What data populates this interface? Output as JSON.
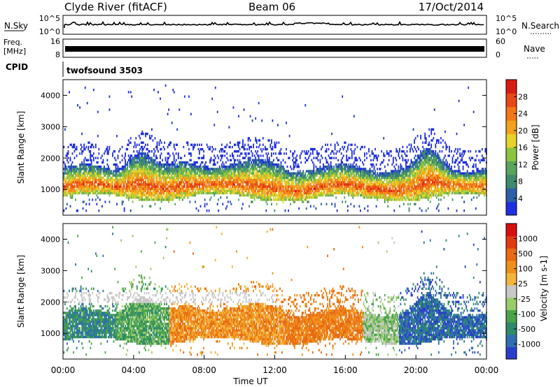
{
  "header": {
    "title": "Clyde River (fitACF)",
    "beam": "Beam 06",
    "date": "17/Oct/2014"
  },
  "nsky_panel": {
    "left_label": "N.Sky",
    "right_label": "N.Search",
    "left_ticks": [
      "10^5",
      "10^0"
    ],
    "right_ticks": [
      "10^5",
      "10^0"
    ]
  },
  "freq_panel": {
    "left_label_line1": "Freq.",
    "left_label_line2": "[MHz]",
    "right_label": "Nave",
    "left_ticks": [
      "16",
      "8"
    ],
    "right_ticks": [
      "60",
      "0"
    ]
  },
  "cpid_panel": {
    "label": "CPID",
    "program": "twofsound 3503"
  },
  "chart_data": [
    {
      "type": "heatmap",
      "name": "power",
      "ylabel": "Slant Range [km]",
      "yticks": [
        1000,
        2000,
        3000,
        4000
      ],
      "ylim": [
        180,
        4500
      ],
      "xlim": [
        0,
        24
      ],
      "colorbar": {
        "label": "Power [dB]",
        "ticks": [
          "28",
          "24",
          "20",
          "16",
          "12",
          "8",
          "4"
        ],
        "colors": [
          "#1f2fe0",
          "#2c5fa6",
          "#3d8a6c",
          "#5aa55c",
          "#8cc440",
          "#e6d22a",
          "#f2a21e",
          "#f0781a",
          "#e84816",
          "#d91c10"
        ]
      }
    },
    {
      "type": "heatmap",
      "name": "velocity",
      "ylabel": "Slant Range [km]",
      "yticks": [
        1000,
        2000,
        3000,
        4000
      ],
      "ylim": [
        180,
        4500
      ],
      "xlim": [
        0,
        24
      ],
      "xlabel": "Time UT",
      "xticks": [
        "00:00",
        "04:00",
        "08:00",
        "12:00",
        "16:00",
        "20:00",
        "00:00"
      ],
      "colorbar": {
        "label": "Velocity [m s-1]",
        "ticks": [
          "1000",
          "500",
          "100",
          "25",
          "-25",
          "-100",
          "-500",
          "-1000"
        ],
        "colors": [
          "#2a3fc9",
          "#2f6fb2",
          "#2f8a6a",
          "#4aa54a",
          "#9acb6b",
          "#c8c8c8",
          "#f2b43a",
          "#f0901c",
          "#e86a12",
          "#e23a10",
          "#d80f0f"
        ]
      }
    }
  ]
}
